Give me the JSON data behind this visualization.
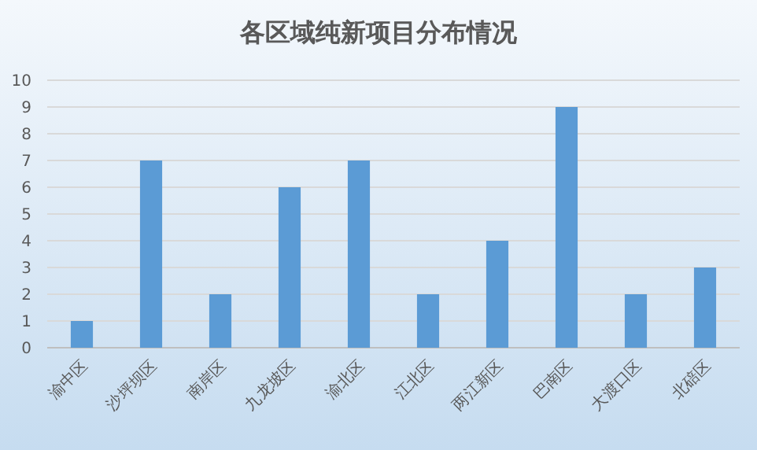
{
  "chart_data": {
    "type": "bar",
    "title": "各区域纯新项目分布情况",
    "categories": [
      "渝中区",
      "沙坪坝区",
      "南岸区",
      "九龙坡区",
      "渝北区",
      "江北区",
      "两江新区",
      "巴南区",
      "大渡口区",
      "北碚区"
    ],
    "values": [
      1,
      7,
      2,
      6,
      7,
      2,
      4,
      9,
      2,
      3
    ],
    "color": "#5b9bd5",
    "ylim": [
      0,
      10
    ],
    "yticks": [
      0,
      1,
      2,
      3,
      4,
      5,
      6,
      7,
      8,
      9,
      10
    ],
    "grid": "y"
  }
}
